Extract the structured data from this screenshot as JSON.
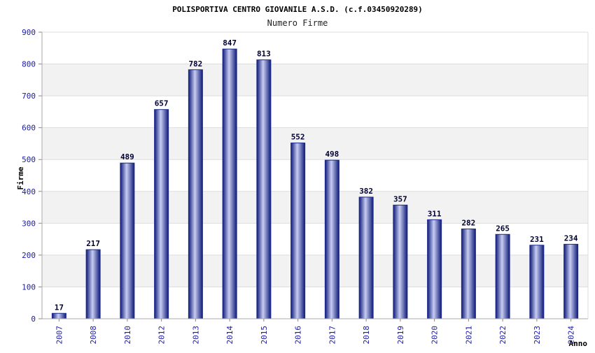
{
  "chart_data": {
    "type": "bar",
    "title": "POLISPORTIVA CENTRO GIOVANILE A.S.D. (c.f.03450920289)",
    "subtitle": "Numero Firme",
    "ylabel": "Firme",
    "xlabel": "Anno",
    "ylim": [
      0,
      900
    ],
    "yticks": [
      0,
      100,
      200,
      300,
      400,
      500,
      600,
      700,
      800,
      900
    ],
    "categories": [
      "2007",
      "2008",
      "2010",
      "2012",
      "2013",
      "2014",
      "2015",
      "2016",
      "2017",
      "2018",
      "2019",
      "2020",
      "2021",
      "2022",
      "2023",
      "2024"
    ],
    "values": [
      17,
      217,
      489,
      657,
      782,
      847,
      813,
      552,
      498,
      382,
      357,
      311,
      282,
      265,
      231,
      234
    ],
    "grid": "horizontal, alternating bands",
    "bar_color": "#1c2a8c",
    "bar_highlight_color": "#c8cdf2",
    "band_color": "#f2f2f2",
    "tick_color": "#1a1aa6"
  }
}
